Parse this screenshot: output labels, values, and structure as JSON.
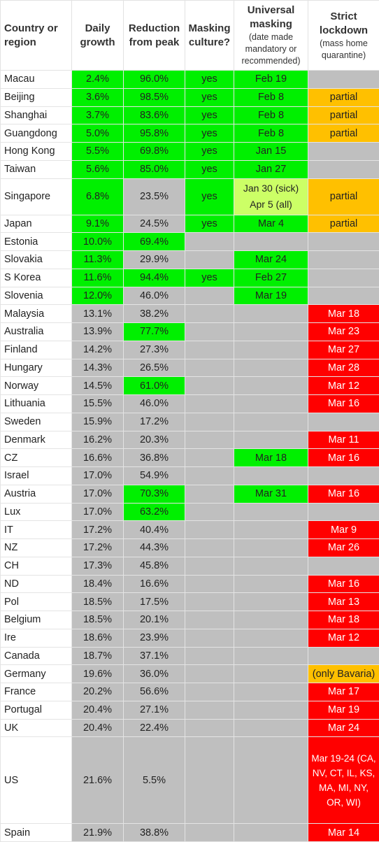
{
  "headers": {
    "country": "Country or region",
    "growth": "Daily growth",
    "reduction": "Reduction from peak",
    "masking": "Masking culture?",
    "universal": "Universal masking",
    "universal_sub": "(date made mandatory or recommended)",
    "lockdown": "Strict lockdown",
    "lockdown_sub": "(mass home quarantine)"
  },
  "colors": {
    "green": "#00f000",
    "gray": "#bfbfbf",
    "light_green": "#ccff66",
    "orange": "#ffc000",
    "red": "#ff0000"
  },
  "rows": [
    {
      "country": "Macau",
      "growth": "2.4%",
      "reduction": "96.0%",
      "masking": "yes",
      "universal": "Feb 19",
      "lockdown": "",
      "cg": "green",
      "cr": "green",
      "cm": "green",
      "cu": "green",
      "cl": "gray"
    },
    {
      "country": "Beijing",
      "growth": "3.6%",
      "reduction": "98.5%",
      "masking": "yes",
      "universal": "Feb 8",
      "lockdown": "partial",
      "cg": "green",
      "cr": "green",
      "cm": "green",
      "cu": "green",
      "cl": "orange"
    },
    {
      "country": "Shanghai",
      "growth": "3.7%",
      "reduction": "83.6%",
      "masking": "yes",
      "universal": "Feb 8",
      "lockdown": "partial",
      "cg": "green",
      "cr": "green",
      "cm": "green",
      "cu": "green",
      "cl": "orange"
    },
    {
      "country": "Guangdong",
      "growth": "5.0%",
      "reduction": "95.8%",
      "masking": "yes",
      "universal": "Feb 8",
      "lockdown": "partial",
      "cg": "green",
      "cr": "green",
      "cm": "green",
      "cu": "green",
      "cl": "orange"
    },
    {
      "country": "Hong Kong",
      "growth": "5.5%",
      "reduction": "69.8%",
      "masking": "yes",
      "universal": "Jan 15",
      "lockdown": "",
      "cg": "green",
      "cr": "green",
      "cm": "green",
      "cu": "green",
      "cl": "gray"
    },
    {
      "country": "Taiwan",
      "growth": "5.6%",
      "reduction": "85.0%",
      "masking": "yes",
      "universal": "Jan 27",
      "lockdown": "",
      "cg": "green",
      "cr": "green",
      "cm": "green",
      "cu": "green",
      "cl": "gray"
    },
    {
      "country": "Singapore",
      "growth": "6.8%",
      "reduction": "23.5%",
      "masking": "yes",
      "universal": "Jan 30 (sick) Apr 5 (all)",
      "lockdown": "partial",
      "cg": "green",
      "cr": "gray",
      "cm": "green",
      "cu": "light",
      "cl": "orange",
      "tall": true
    },
    {
      "country": "Japan",
      "growth": "9.1%",
      "reduction": "24.5%",
      "masking": "yes",
      "universal": "Mar 4",
      "lockdown": "partial",
      "cg": "green",
      "cr": "gray",
      "cm": "green",
      "cu": "green",
      "cl": "orange"
    },
    {
      "country": "Estonia",
      "growth": "10.0%",
      "reduction": "69.4%",
      "masking": "",
      "universal": "",
      "lockdown": "",
      "cg": "green",
      "cr": "green",
      "cm": "gray",
      "cu": "gray",
      "cl": "gray"
    },
    {
      "country": "Slovakia",
      "growth": "11.3%",
      "reduction": "29.9%",
      "masking": "",
      "universal": "Mar 24",
      "lockdown": "",
      "cg": "green",
      "cr": "gray",
      "cm": "gray",
      "cu": "green",
      "cl": "gray"
    },
    {
      "country": "S Korea",
      "growth": "11.6%",
      "reduction": "94.4%",
      "masking": "yes",
      "universal": "Feb 27",
      "lockdown": "",
      "cg": "green",
      "cr": "green",
      "cm": "green",
      "cu": "green",
      "cl": "gray"
    },
    {
      "country": "Slovenia",
      "growth": "12.0%",
      "reduction": "46.0%",
      "masking": "",
      "universal": "Mar 19",
      "lockdown": "",
      "cg": "green",
      "cr": "gray",
      "cm": "gray",
      "cu": "green",
      "cl": "gray"
    },
    {
      "country": "Malaysia",
      "growth": "13.1%",
      "reduction": "38.2%",
      "masking": "",
      "universal": "",
      "lockdown": "Mar 18",
      "cg": "gray",
      "cr": "gray",
      "cm": "gray",
      "cu": "gray",
      "cl": "red"
    },
    {
      "country": "Australia",
      "growth": "13.9%",
      "reduction": "77.7%",
      "masking": "",
      "universal": "",
      "lockdown": "Mar 23",
      "cg": "gray",
      "cr": "green",
      "cm": "gray",
      "cu": "gray",
      "cl": "red"
    },
    {
      "country": "Finland",
      "growth": "14.2%",
      "reduction": "27.3%",
      "masking": "",
      "universal": "",
      "lockdown": "Mar 27",
      "cg": "gray",
      "cr": "gray",
      "cm": "gray",
      "cu": "gray",
      "cl": "red"
    },
    {
      "country": "Hungary",
      "growth": "14.3%",
      "reduction": "26.5%",
      "masking": "",
      "universal": "",
      "lockdown": "Mar 28",
      "cg": "gray",
      "cr": "gray",
      "cm": "gray",
      "cu": "gray",
      "cl": "red"
    },
    {
      "country": "Norway",
      "growth": "14.5%",
      "reduction": "61.0%",
      "masking": "",
      "universal": "",
      "lockdown": "Mar 12",
      "cg": "gray",
      "cr": "green",
      "cm": "gray",
      "cu": "gray",
      "cl": "red"
    },
    {
      "country": "Lithuania",
      "growth": "15.5%",
      "reduction": "46.0%",
      "masking": "",
      "universal": "",
      "lockdown": "Mar 16",
      "cg": "gray",
      "cr": "gray",
      "cm": "gray",
      "cu": "gray",
      "cl": "red"
    },
    {
      "country": "Sweden",
      "growth": "15.9%",
      "reduction": "17.2%",
      "masking": "",
      "universal": "",
      "lockdown": "",
      "cg": "gray",
      "cr": "gray",
      "cm": "gray",
      "cu": "gray",
      "cl": "gray"
    },
    {
      "country": "Denmark",
      "growth": "16.2%",
      "reduction": "20.3%",
      "masking": "",
      "universal": "",
      "lockdown": "Mar 11",
      "cg": "gray",
      "cr": "gray",
      "cm": "gray",
      "cu": "gray",
      "cl": "red"
    },
    {
      "country": "CZ",
      "growth": "16.6%",
      "reduction": "36.8%",
      "masking": "",
      "universal": "Mar 18",
      "lockdown": "Mar 16",
      "cg": "gray",
      "cr": "gray",
      "cm": "gray",
      "cu": "green",
      "cl": "red"
    },
    {
      "country": "Israel",
      "growth": "17.0%",
      "reduction": "54.9%",
      "masking": "",
      "universal": "",
      "lockdown": "",
      "cg": "gray",
      "cr": "gray",
      "cm": "gray",
      "cu": "gray",
      "cl": "gray"
    },
    {
      "country": "Austria",
      "growth": "17.0%",
      "reduction": "70.3%",
      "masking": "",
      "universal": "Mar 31",
      "lockdown": "Mar 16",
      "cg": "gray",
      "cr": "green",
      "cm": "gray",
      "cu": "green",
      "cl": "red"
    },
    {
      "country": "Lux",
      "growth": "17.0%",
      "reduction": "63.2%",
      "masking": "",
      "universal": "",
      "lockdown": "",
      "cg": "gray",
      "cr": "green",
      "cm": "gray",
      "cu": "gray",
      "cl": "gray"
    },
    {
      "country": "IT",
      "growth": "17.2%",
      "reduction": "40.4%",
      "masking": "",
      "universal": "",
      "lockdown": "Mar 9",
      "cg": "gray",
      "cr": "gray",
      "cm": "gray",
      "cu": "gray",
      "cl": "red"
    },
    {
      "country": "NZ",
      "growth": "17.2%",
      "reduction": "44.3%",
      "masking": "",
      "universal": "",
      "lockdown": "Mar 26",
      "cg": "gray",
      "cr": "gray",
      "cm": "gray",
      "cu": "gray",
      "cl": "red"
    },
    {
      "country": "CH",
      "growth": "17.3%",
      "reduction": "45.8%",
      "masking": "",
      "universal": "",
      "lockdown": "",
      "cg": "gray",
      "cr": "gray",
      "cm": "gray",
      "cu": "gray",
      "cl": "gray"
    },
    {
      "country": "ND",
      "growth": "18.4%",
      "reduction": "16.6%",
      "masking": "",
      "universal": "",
      "lockdown": "Mar 16",
      "cg": "gray",
      "cr": "gray",
      "cm": "gray",
      "cu": "gray",
      "cl": "red"
    },
    {
      "country": "Pol",
      "growth": "18.5%",
      "reduction": "17.5%",
      "masking": "",
      "universal": "",
      "lockdown": "Mar 13",
      "cg": "gray",
      "cr": "gray",
      "cm": "gray",
      "cu": "gray",
      "cl": "red"
    },
    {
      "country": "Belgium",
      "growth": "18.5%",
      "reduction": "20.1%",
      "masking": "",
      "universal": "",
      "lockdown": "Mar 18",
      "cg": "gray",
      "cr": "gray",
      "cm": "gray",
      "cu": "gray",
      "cl": "red"
    },
    {
      "country": "Ire",
      "growth": "18.6%",
      "reduction": "23.9%",
      "masking": "",
      "universal": "",
      "lockdown": "Mar 12",
      "cg": "gray",
      "cr": "gray",
      "cm": "gray",
      "cu": "gray",
      "cl": "red"
    },
    {
      "country": "Canada",
      "growth": "18.7%",
      "reduction": "37.1%",
      "masking": "",
      "universal": "",
      "lockdown": "",
      "cg": "gray",
      "cr": "gray",
      "cm": "gray",
      "cu": "gray",
      "cl": "gray"
    },
    {
      "country": "Germany",
      "growth": "19.6%",
      "reduction": "36.0%",
      "masking": "",
      "universal": "",
      "lockdown": "(only Bavaria)",
      "cg": "gray",
      "cr": "gray",
      "cm": "gray",
      "cu": "gray",
      "cl": "orange"
    },
    {
      "country": "France",
      "growth": "20.2%",
      "reduction": "56.6%",
      "masking": "",
      "universal": "",
      "lockdown": "Mar 17",
      "cg": "gray",
      "cr": "gray",
      "cm": "gray",
      "cu": "gray",
      "cl": "red"
    },
    {
      "country": "Portugal",
      "growth": "20.4%",
      "reduction": "27.1%",
      "masking": "",
      "universal": "",
      "lockdown": "Mar 19",
      "cg": "gray",
      "cr": "gray",
      "cm": "gray",
      "cu": "gray",
      "cl": "red"
    },
    {
      "country": "UK",
      "growth": "20.4%",
      "reduction": "22.4%",
      "masking": "",
      "universal": "",
      "lockdown": "Mar 24",
      "cg": "gray",
      "cr": "gray",
      "cm": "gray",
      "cu": "gray",
      "cl": "red"
    },
    {
      "country": "US",
      "growth": "21.6%",
      "reduction": "5.5%",
      "masking": "",
      "universal": "",
      "lockdown": "Mar 19-24 (CA, NV, CT, IL, KS, MA, MI, NY, OR, WI)",
      "cg": "gray",
      "cr": "gray",
      "cm": "gray",
      "cu": "gray",
      "cl": "red",
      "xtall": true
    },
    {
      "country": "Spain",
      "growth": "21.9%",
      "reduction": "38.8%",
      "masking": "",
      "universal": "",
      "lockdown": "Mar 14",
      "cg": "gray",
      "cr": "gray",
      "cm": "gray",
      "cu": "gray",
      "cl": "red"
    }
  ]
}
